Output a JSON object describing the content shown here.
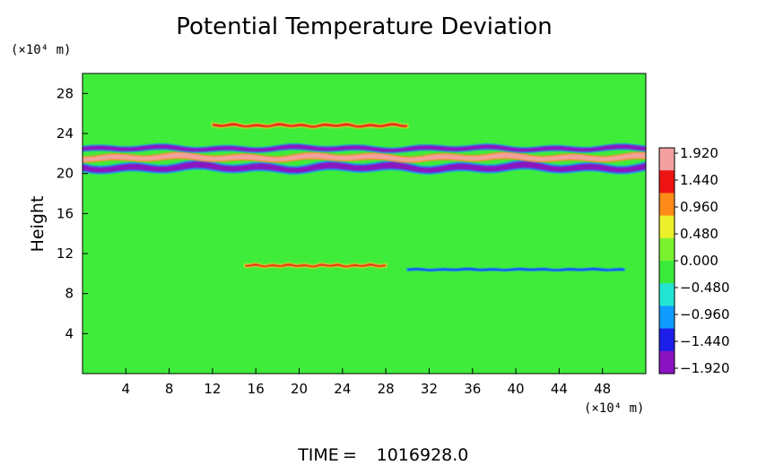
{
  "chart_data": {
    "type": "heatmap",
    "title": "Potential Temperature Deviation",
    "ylabel": "Height",
    "y_unit_label": "(×10⁴ m)",
    "x_unit_label": "(×10⁴ m)",
    "xlim": [
      0,
      52
    ],
    "ylim": [
      0,
      30
    ],
    "x_ticks": [
      "4",
      "8",
      "12",
      "16",
      "20",
      "24",
      "28",
      "32",
      "36",
      "40",
      "44",
      "48"
    ],
    "y_ticks": [
      "4",
      "8",
      "12",
      "16",
      "20",
      "24",
      "28"
    ],
    "colorbar_ticks": [
      "1.920",
      "1.440",
      "0.960",
      "0.480",
      "0.000",
      "−0.480",
      "−0.960",
      "−1.440",
      "−1.920"
    ],
    "color_range": [
      -2.0,
      2.0
    ],
    "colormap": [
      "#8a12c0",
      "#1d1ee8",
      "#0f9bff",
      "#23e5d2",
      "#3cea3c",
      "#7af230",
      "#eaf02a",
      "#ff8a1a",
      "#ee1414",
      "#f4a0a0"
    ],
    "background_color": "#40ec3a",
    "features": [
      {
        "kind": "band",
        "x_range": [
          0,
          52
        ],
        "y_center": 20.6,
        "thickness": 0.6,
        "value": -2.0
      },
      {
        "kind": "band",
        "x_range": [
          0,
          52
        ],
        "y_center": 21.6,
        "thickness": 0.45,
        "value": 2.0
      },
      {
        "kind": "band",
        "x_range": [
          0,
          52
        ],
        "y_center": 22.5,
        "thickness": 0.4,
        "value": -1.9
      },
      {
        "kind": "band",
        "x_range": [
          12,
          30
        ],
        "y_center": 24.8,
        "thickness": 0.25,
        "value": 1.4
      },
      {
        "kind": "band",
        "x_range": [
          15,
          28
        ],
        "y_center": 10.8,
        "thickness": 0.2,
        "value": 1.3
      },
      {
        "kind": "band",
        "x_range": [
          30,
          50
        ],
        "y_center": 10.4,
        "thickness": 0.12,
        "value": -1.5
      }
    ],
    "time_label": "TIME",
    "time_value": "1016928.0"
  }
}
